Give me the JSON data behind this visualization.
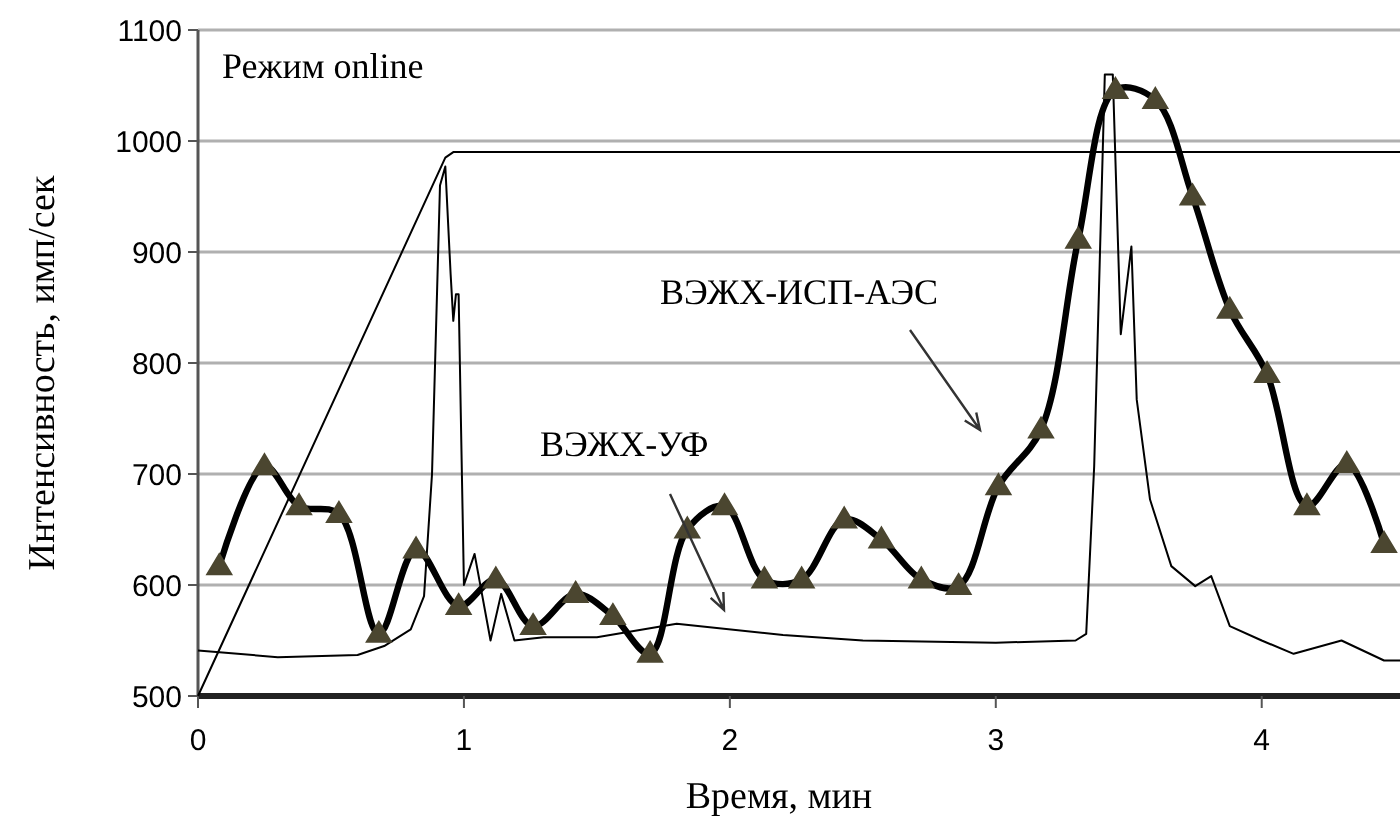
{
  "chart_data": {
    "type": "line",
    "xlabel": "Время, мин",
    "ylabel": "Интенсивность, имп/сек",
    "xlim": [
      0,
      4.52
    ],
    "xticks": [
      0,
      1,
      2,
      3,
      4
    ],
    "ylim": [
      500,
      1100
    ],
    "yticks": [
      500,
      600,
      700,
      800,
      900,
      1000,
      1100
    ],
    "grid": "y",
    "series": [
      {
        "color": "#000000",
        "marker": "none",
        "x": [
          0,
          0.93,
          0.96,
          4.52
        ],
        "values": [
          500,
          985,
          990,
          990
        ]
      },
      {
        "color": "#000000",
        "marker": "none",
        "x": [
          0,
          0.3,
          0.6,
          0.7,
          0.8,
          0.85,
          0.88,
          0.91,
          0.93,
          0.95,
          0.96,
          0.97,
          0.98,
          1.0,
          1.04,
          1.1,
          1.14,
          1.19,
          1.3,
          1.5,
          1.8,
          2.2,
          2.5,
          3.0,
          3.3,
          3.34,
          3.37,
          3.41,
          3.44,
          3.47,
          3.51,
          3.53,
          3.58,
          3.66,
          3.75,
          3.81,
          3.88,
          4.0,
          4.12,
          4.3,
          4.46,
          4.52
        ],
        "values": [
          541,
          535,
          537,
          545,
          560,
          590,
          700,
          960,
          977,
          880,
          838,
          862,
          862,
          600,
          628,
          550,
          592,
          550,
          553,
          553,
          565,
          555,
          550,
          548,
          550,
          556,
          707,
          1060,
          1060,
          826,
          905,
          767,
          677,
          617,
          599,
          608,
          563,
          550,
          538,
          550,
          532,
          532
        ]
      },
      {
        "color": "#000000",
        "marker": "triangle",
        "x": [
          0.08,
          0.25,
          0.38,
          0.53,
          0.68,
          0.82,
          0.98,
          1.12,
          1.26,
          1.42,
          1.56,
          1.7,
          1.84,
          1.98,
          2.13,
          2.27,
          2.43,
          2.57,
          2.72,
          2.86,
          3.01,
          3.17,
          3.31,
          3.45,
          3.6,
          3.74,
          3.88,
          4.02,
          4.17,
          4.32,
          4.46
        ],
        "values": [
          617,
          707,
          671,
          664,
          556,
          632,
          581,
          605,
          563,
          592,
          572,
          538,
          650,
          671,
          605,
          605,
          659,
          641,
          605,
          599,
          689,
          740,
          911,
          1046,
          1037,
          950,
          848,
          790,
          671,
          709,
          637
        ]
      }
    ],
    "annotations": [
      "Режим online",
      "ВЭЖХ-ИСП-АЭС",
      "ВЭЖХ-УФ"
    ]
  }
}
